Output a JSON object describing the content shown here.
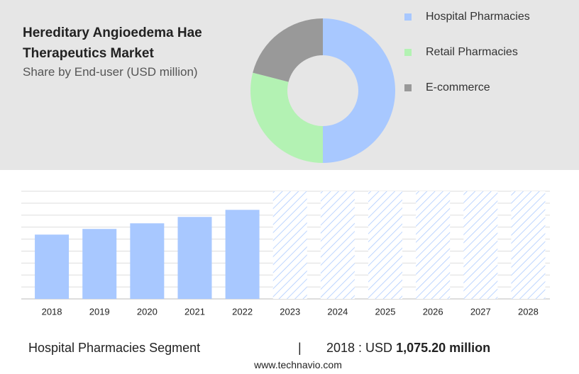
{
  "chart_data": [
    {
      "type": "pie",
      "title": "Hereditary Angioedema Hae Therapeutics Market",
      "subtitle": "Share by End-user (USD million)",
      "donut": true,
      "categories": [
        "Hospital Pharmacies",
        "Retail Pharmacies",
        "E-commerce"
      ],
      "values": [
        50,
        29,
        21
      ],
      "colors": [
        "#a8c8ff",
        "#b3f2b3",
        "#999999"
      ]
    },
    {
      "type": "bar",
      "categories": [
        "2018",
        "2019",
        "2020",
        "2021",
        "2022",
        "2023",
        "2024",
        "2025",
        "2026",
        "2027",
        "2028"
      ],
      "values": [
        1075.2,
        1170,
        1264,
        1371,
        1489,
        null,
        null,
        null,
        null,
        null,
        null
      ],
      "color": "#a8c8ff",
      "ylim": [
        0,
        1800
      ],
      "yticks": [
        0,
        200,
        400,
        600,
        800,
        1000,
        1200,
        1400,
        1600,
        1800
      ],
      "grid": true
    }
  ],
  "footer": {
    "segment": "Hospital Pharmacies Segment",
    "separator": "|",
    "year_label": "2018 : USD",
    "value_label": "1,075.20 million",
    "website": "www.technavio.com"
  }
}
